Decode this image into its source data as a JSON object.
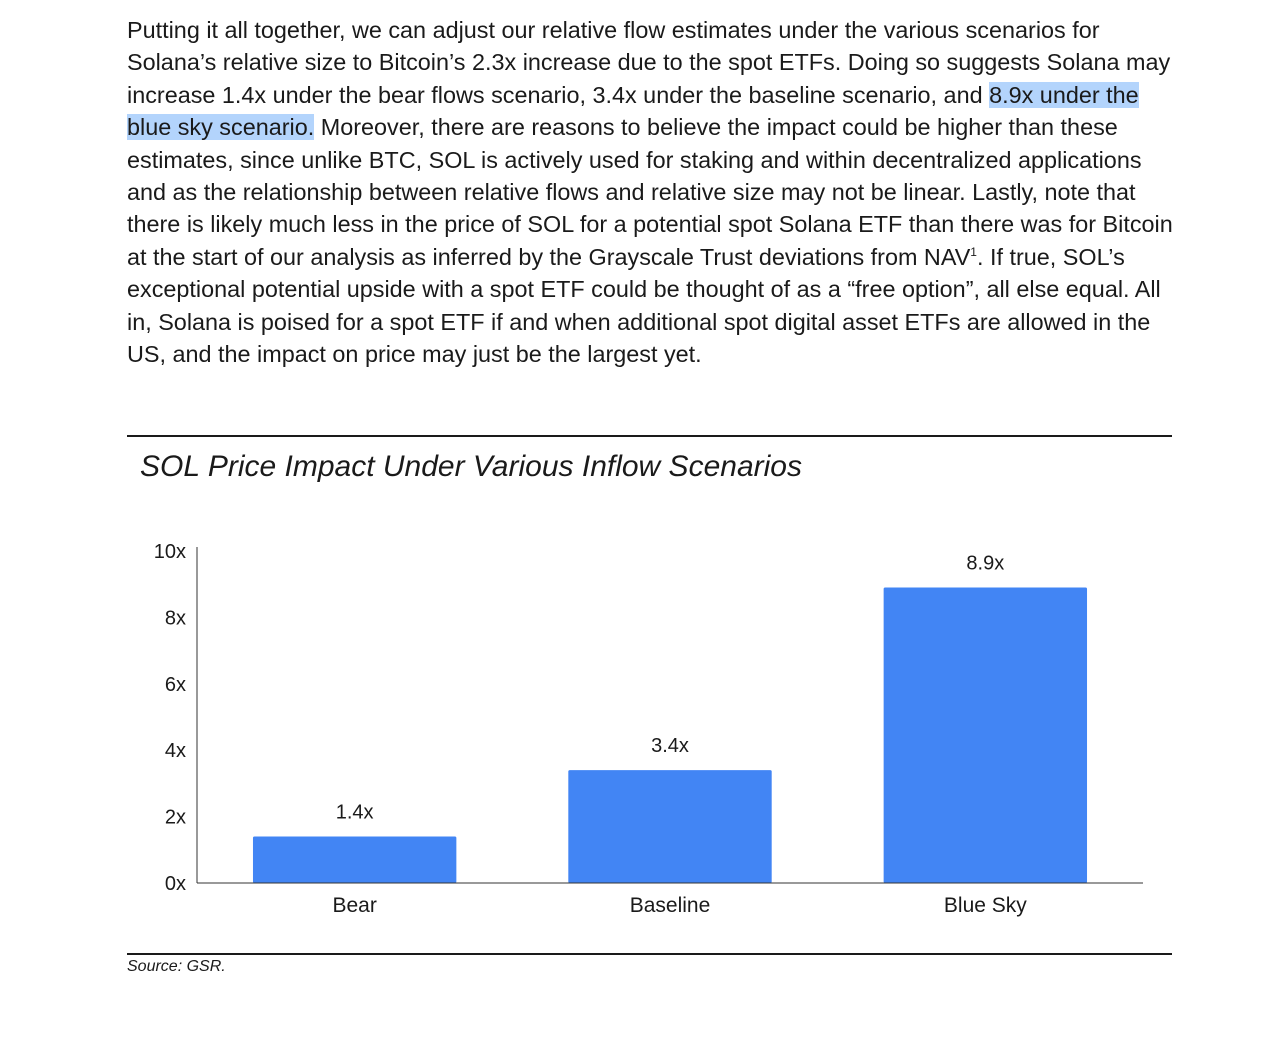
{
  "paragraph": {
    "seg1": "Putting it all together, we can adjust our relative flow estimates under the various scenarios for Solana’s relative size to Bitcoin’s 2.3x increase due to the spot ETFs.  Doing so suggests Solana may increase 1.4x under the bear flows scenario, 3.4x under the baseline scenario, and ",
    "highlight": "8.9x under the blue sky scenario.",
    "seg2": "  Moreover, there are reasons to believe the impact could be higher than these estimates, since unlike BTC, SOL is actively used for staking and within decentralized applications and as the relationship between relative flows and relative size may not be linear.  Lastly, note that there is likely much less in the price of SOL for a potential spot Solana ETF than there was for Bitcoin at the start of our analysis as inferred by the Grayscale Trust deviations from NAV",
    "footnote": "1",
    "seg3": ".  If true, SOL’s exceptional potential upside with a spot ETF could be thought of as a “free option”, all else equal.  All in, Solana is poised for a spot ETF if and when additional spot digital asset ETFs are allowed in the US, and the impact on price may just be the largest yet."
  },
  "chart_data": {
    "type": "bar",
    "title": "SOL Price Impact Under Various Inflow Scenarios",
    "categories": [
      "Bear",
      "Baseline",
      "Blue Sky"
    ],
    "values": [
      1.4,
      3.4,
      8.9
    ],
    "data_labels": [
      "1.4x",
      "3.4x",
      "8.9x"
    ],
    "ylim": [
      0,
      10
    ],
    "yticks": [
      0,
      2,
      4,
      6,
      8,
      10
    ],
    "ytick_labels": [
      "0x",
      "2x",
      "4x",
      "6x",
      "8x",
      "10x"
    ],
    "xlabel": "",
    "ylabel": "",
    "grid": false,
    "bar_color": "#4285f4"
  },
  "source": "Source: GSR."
}
